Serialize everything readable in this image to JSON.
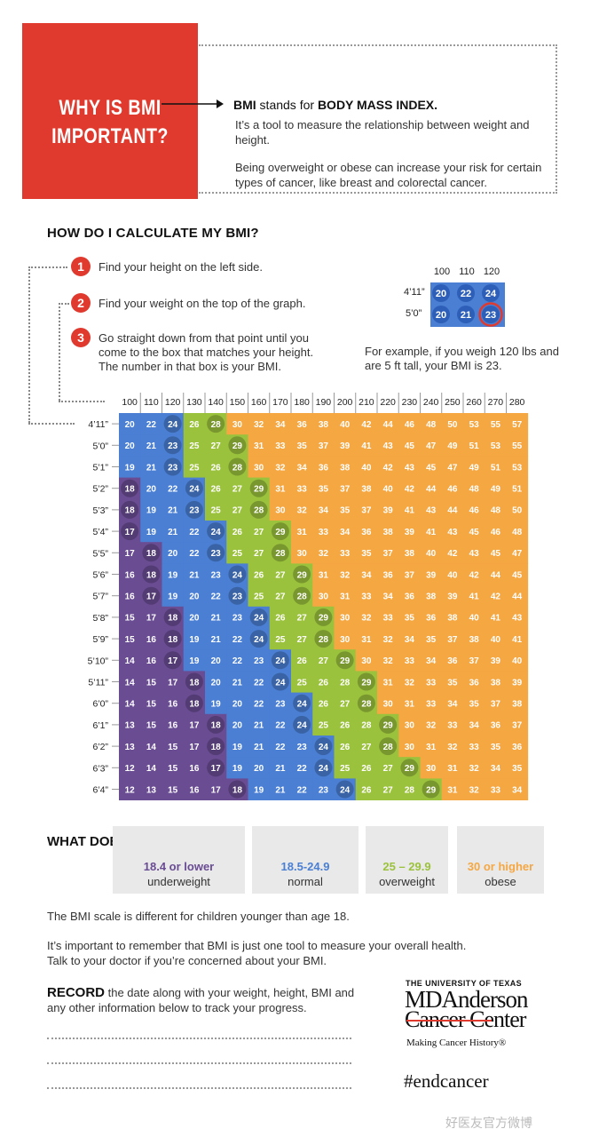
{
  "intro": {
    "title_line1": "WHY IS BMI",
    "title_line2": "IMPORTANT?",
    "def_prefix": "BMI",
    "def_middle": " stands for ",
    "def_term": "BODY MASS INDEX.",
    "def_line1": "It’s a tool to measure the relationship between weight and height.",
    "def_line2": "Being overweight or obese can increase your risk for certain types of cancer, like breast and colorectal cancer."
  },
  "calc": {
    "title": "HOW DO I CALCULATE MY BMI?",
    "steps": [
      {
        "num": "1",
        "text": "Find your height on the left side."
      },
      {
        "num": "2",
        "text": "Find your weight on the top of the graph."
      },
      {
        "num": "3",
        "text": "Go straight down from that point until you come to the box that matches your height. The number in that box is your BMI."
      }
    ],
    "example": {
      "weights": [
        "100",
        "110",
        "120"
      ],
      "heights": [
        "4’11”",
        "5’0”"
      ],
      "values": [
        [
          20,
          22,
          24
        ],
        [
          20,
          21,
          23
        ]
      ],
      "highlight": "23",
      "text": "For example, if you weigh 120 lbs and are 5 ft tall, your BMI is 23."
    }
  },
  "chart_data": {
    "type": "table",
    "weights": [
      100,
      110,
      120,
      130,
      140,
      150,
      160,
      170,
      180,
      190,
      200,
      210,
      220,
      230,
      240,
      250,
      260,
      270,
      280
    ],
    "heights": [
      "4’11”",
      "5’0”",
      "5’1”",
      "5’2”",
      "5’3”",
      "5’4”",
      "5’5”",
      "5’6”",
      "5’7”",
      "5’8”",
      "5’9”",
      "5’10”",
      "5’11”",
      "6’0”",
      "6’1”",
      "6’2”",
      "6’3”",
      "6’4”"
    ],
    "rows": [
      [
        20,
        22,
        24,
        26,
        28,
        30,
        32,
        34,
        36,
        38,
        40,
        42,
        44,
        46,
        48,
        50,
        53,
        55,
        57
      ],
      [
        20,
        21,
        23,
        25,
        27,
        29,
        31,
        33,
        35,
        37,
        39,
        41,
        43,
        45,
        47,
        49,
        51,
        53,
        55
      ],
      [
        19,
        21,
        23,
        25,
        26,
        28,
        30,
        32,
        34,
        36,
        38,
        40,
        42,
        43,
        45,
        47,
        49,
        51,
        53
      ],
      [
        18,
        20,
        22,
        24,
        26,
        27,
        29,
        31,
        33,
        35,
        37,
        38,
        40,
        42,
        44,
        46,
        48,
        49,
        51
      ],
      [
        18,
        19,
        21,
        23,
        25,
        27,
        28,
        30,
        32,
        34,
        35,
        37,
        39,
        41,
        43,
        44,
        46,
        48,
        50
      ],
      [
        17,
        19,
        21,
        22,
        24,
        26,
        27,
        29,
        31,
        33,
        34,
        36,
        38,
        39,
        41,
        43,
        45,
        46,
        48
      ],
      [
        17,
        18,
        20,
        22,
        23,
        25,
        27,
        28,
        30,
        32,
        33,
        35,
        37,
        38,
        40,
        42,
        43,
        45,
        47
      ],
      [
        16,
        18,
        19,
        21,
        23,
        24,
        26,
        27,
        29,
        31,
        32,
        34,
        36,
        37,
        39,
        40,
        42,
        44,
        45
      ],
      [
        16,
        17,
        19,
        20,
        22,
        23,
        25,
        27,
        28,
        30,
        31,
        33,
        34,
        36,
        38,
        39,
        41,
        42,
        44
      ],
      [
        15,
        17,
        18,
        20,
        21,
        23,
        24,
        26,
        27,
        29,
        30,
        32,
        33,
        35,
        36,
        38,
        40,
        41,
        43
      ],
      [
        15,
        16,
        18,
        19,
        21,
        22,
        24,
        25,
        27,
        28,
        30,
        31,
        32,
        34,
        35,
        37,
        38,
        40,
        41
      ],
      [
        14,
        16,
        17,
        19,
        20,
        22,
        23,
        24,
        26,
        27,
        29,
        30,
        32,
        33,
        34,
        36,
        37,
        39,
        40
      ],
      [
        14,
        15,
        17,
        18,
        20,
        21,
        22,
        24,
        25,
        26,
        28,
        29,
        31,
        32,
        33,
        35,
        36,
        38,
        39
      ],
      [
        14,
        15,
        16,
        18,
        19,
        20,
        22,
        23,
        24,
        26,
        27,
        28,
        30,
        31,
        33,
        34,
        35,
        37,
        38
      ],
      [
        13,
        15,
        16,
        17,
        18,
        20,
        21,
        22,
        24,
        25,
        26,
        28,
        29,
        30,
        32,
        33,
        34,
        36,
        37
      ],
      [
        13,
        14,
        15,
        17,
        18,
        19,
        21,
        22,
        23,
        24,
        26,
        27,
        28,
        30,
        31,
        32,
        33,
        35,
        36
      ],
      [
        12,
        14,
        15,
        16,
        17,
        19,
        20,
        21,
        22,
        24,
        25,
        26,
        27,
        29,
        30,
        31,
        32,
        34,
        35
      ],
      [
        12,
        13,
        15,
        16,
        17,
        18,
        19,
        21,
        22,
        23,
        24,
        26,
        27,
        28,
        29,
        31,
        32,
        33,
        34
      ]
    ],
    "categories": [
      {
        "range": "18.4 or lower",
        "label": "underweight",
        "color": "#6a4c93",
        "max": 18.4
      },
      {
        "range": "18.5-24.9",
        "label": "normal",
        "color": "#4a7fd4",
        "max": 24.9
      },
      {
        "range": "25 – 29.9",
        "label": "overweight",
        "color": "#9bc23c",
        "max": 29.9
      },
      {
        "range": "30 or higher",
        "label": "obese",
        "color": "#f5a742",
        "max": 999
      }
    ]
  },
  "meaning": {
    "title": "WHAT DOES IT MEAN?"
  },
  "notes": {
    "children": "The BMI scale is different for children younger than age 18.",
    "tool_line1": "It’s important to remember that BMI is just one tool to measure your overall health.",
    "tool_line2": "Talk to your doctor if you’re concerned about your BMI.",
    "record_bold": "RECORD",
    "record_text": " the date along with your weight, height, BMI and any other information below to track your progress."
  },
  "logo": {
    "university": "THE UNIVERSITY OF TEXAS",
    "line1": "MDAnderson",
    "line2": "Cancer Center",
    "tagline": "Making Cancer History®",
    "hashtag": "#endcancer"
  },
  "watermark": "好医友官方微博",
  "colors": {
    "accent": "#e03a2f",
    "underweight": "#6a4c93",
    "normal": "#4a7fd4",
    "overweight": "#9bc23c",
    "obese": "#f5a742"
  }
}
